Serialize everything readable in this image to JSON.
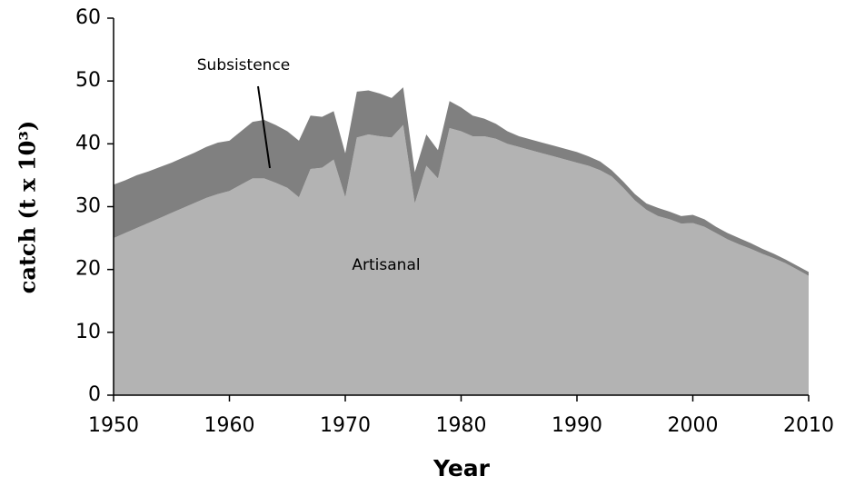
{
  "chart_data": {
    "type": "stacked_area",
    "xlabel": "Year",
    "ylabel": "catch (t x 10³)",
    "x": [
      1950,
      1951,
      1952,
      1953,
      1954,
      1955,
      1956,
      1957,
      1958,
      1959,
      1960,
      1961,
      1962,
      1963,
      1964,
      1965,
      1966,
      1967,
      1968,
      1969,
      1970,
      1971,
      1972,
      1973,
      1974,
      1975,
      1976,
      1977,
      1978,
      1979,
      1980,
      1981,
      1982,
      1983,
      1984,
      1985,
      1986,
      1987,
      1988,
      1989,
      1990,
      1991,
      1992,
      1993,
      1994,
      1995,
      1996,
      1997,
      1998,
      1999,
      2000,
      2001,
      2002,
      2003,
      2004,
      2005,
      2006,
      2007,
      2008,
      2009,
      2010
    ],
    "series": [
      {
        "name": "Artisanal",
        "color": "#b3b3b3",
        "values": [
          25,
          25.8,
          26.6,
          27.4,
          28.2,
          29,
          29.8,
          30.6,
          31.4,
          32,
          32.5,
          33.5,
          34.5,
          34.5,
          33.8,
          33,
          31.5,
          36,
          36.2,
          37.5,
          31.5,
          41,
          41.5,
          41.2,
          41,
          43,
          30.5,
          36.5,
          34.5,
          42.5,
          42,
          41.2,
          41.2,
          40.8,
          40,
          39.5,
          39,
          38.5,
          38,
          37.5,
          37,
          36.5,
          35.8,
          34.8,
          33,
          31,
          29.5,
          28.5,
          28,
          27.3,
          27.4,
          26.8,
          25.8,
          24.8,
          24,
          23.3,
          22.5,
          21.8,
          21,
          20,
          19
        ]
      },
      {
        "name": "Subsistence",
        "color": "#808080",
        "values": [
          8.5,
          8.4,
          8.4,
          8.2,
          8.1,
          8,
          8,
          8,
          8.1,
          8.2,
          8,
          8.5,
          9,
          9.3,
          9.2,
          9,
          9,
          8.5,
          8.1,
          7.7,
          7,
          7.3,
          7,
          6.8,
          6.3,
          6,
          5,
          5,
          4.5,
          4.3,
          3.8,
          3.3,
          2.8,
          2.4,
          2,
          1.7,
          1.7,
          1.7,
          1.7,
          1.7,
          1.7,
          1.5,
          1.4,
          1,
          1,
          1,
          1,
          1.3,
          1.2,
          1.2,
          1.3,
          1.2,
          1,
          1,
          1,
          0.9,
          0.8,
          0.7,
          0.6,
          0.6,
          0.6
        ]
      }
    ],
    "xlim": [
      1950,
      2010
    ],
    "xticks": [
      1950,
      1960,
      1970,
      1980,
      1990,
      2000,
      2010
    ],
    "ylim": [
      0,
      60
    ],
    "yticks": [
      0,
      10,
      20,
      30,
      40,
      50,
      60
    ]
  }
}
